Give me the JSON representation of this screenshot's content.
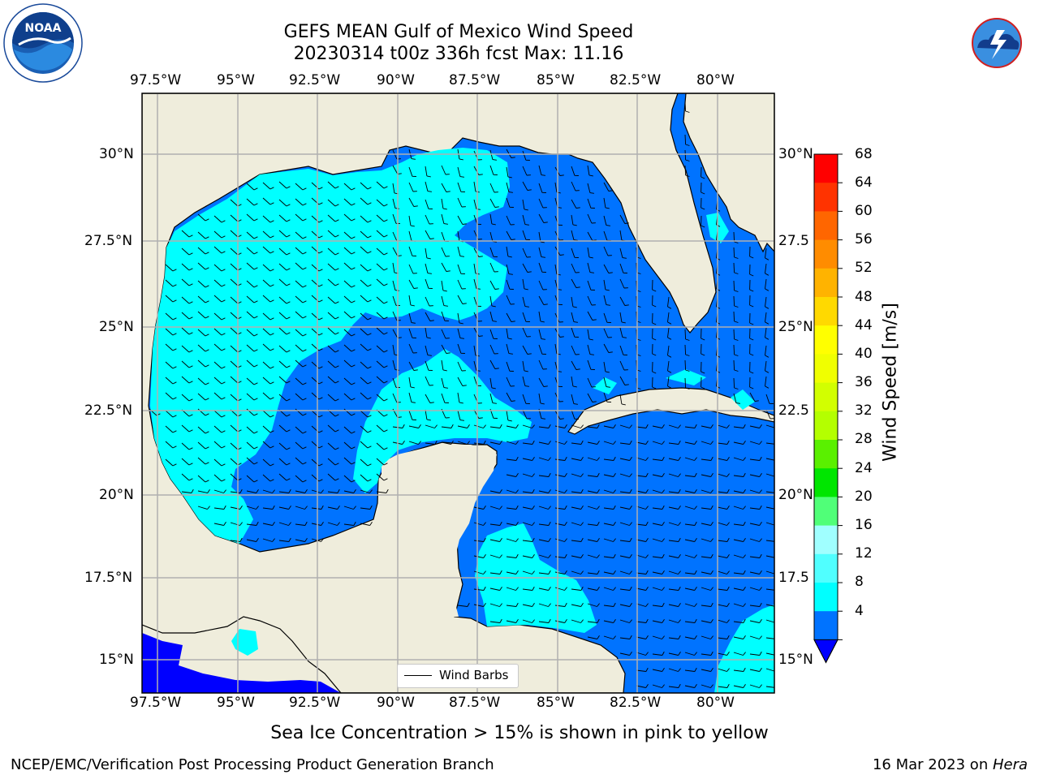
{
  "header": {
    "title_line1": "GEFS MEAN Gulf of Mexico Wind Speed",
    "title_line2": "20230314 t00z 336h fcst   Max: 11.16"
  },
  "logos": {
    "left": "noaa-logo",
    "right": "nws-logo"
  },
  "map": {
    "longitude_ticks": [
      "97.5°W",
      "95°W",
      "92.5°W",
      "90°W",
      "87.5°W",
      "85°W",
      "82.5°W",
      "80°W"
    ],
    "latitude_ticks_left": [
      "30°N",
      "27.5°N",
      "25°N",
      "22.5°N",
      "20°N",
      "17.5°N",
      "15°N"
    ],
    "latitude_ticks_right": [
      "30°N",
      "27.5",
      "25°N",
      "22.5",
      "20°N",
      "17.5",
      "15°N"
    ],
    "lon_range": [
      -98,
      -78.25
    ],
    "lat_range": [
      14,
      31.7
    ],
    "legend_label": "Wind Barbs",
    "colors": {
      "land": "#efeddc",
      "wind_4_8": "#0073ff",
      "wind_8_12": "#00ffff",
      "wind_below_4": "#0000ff"
    }
  },
  "colorbar": {
    "label": "Wind Speed [m/s]",
    "ticks": [
      "68",
      "64",
      "60",
      "56",
      "52",
      "48",
      "44",
      "40",
      "36",
      "32",
      "28",
      "24",
      "20",
      "16",
      "12",
      "8",
      "4"
    ],
    "colors": [
      "#ff0000",
      "#ff3300",
      "#ff6600",
      "#ff8c00",
      "#ffb300",
      "#ffd900",
      "#ffff00",
      "#f0ff00",
      "#d2ff00",
      "#b4ff00",
      "#5af000",
      "#00e600",
      "#50ff78",
      "#a0ffff",
      "#50ffff",
      "#00ffff",
      "#0073ff"
    ],
    "under_color": "#0000ff"
  },
  "notes": {
    "sea_ice": "Sea Ice Concentration > 15% is shown in pink to yellow"
  },
  "footer": {
    "left": "NCEP/EMC/Verification Post Processing Product Generation Branch",
    "right_date": "16 Mar 2023 on ",
    "right_machine": "Hera"
  }
}
